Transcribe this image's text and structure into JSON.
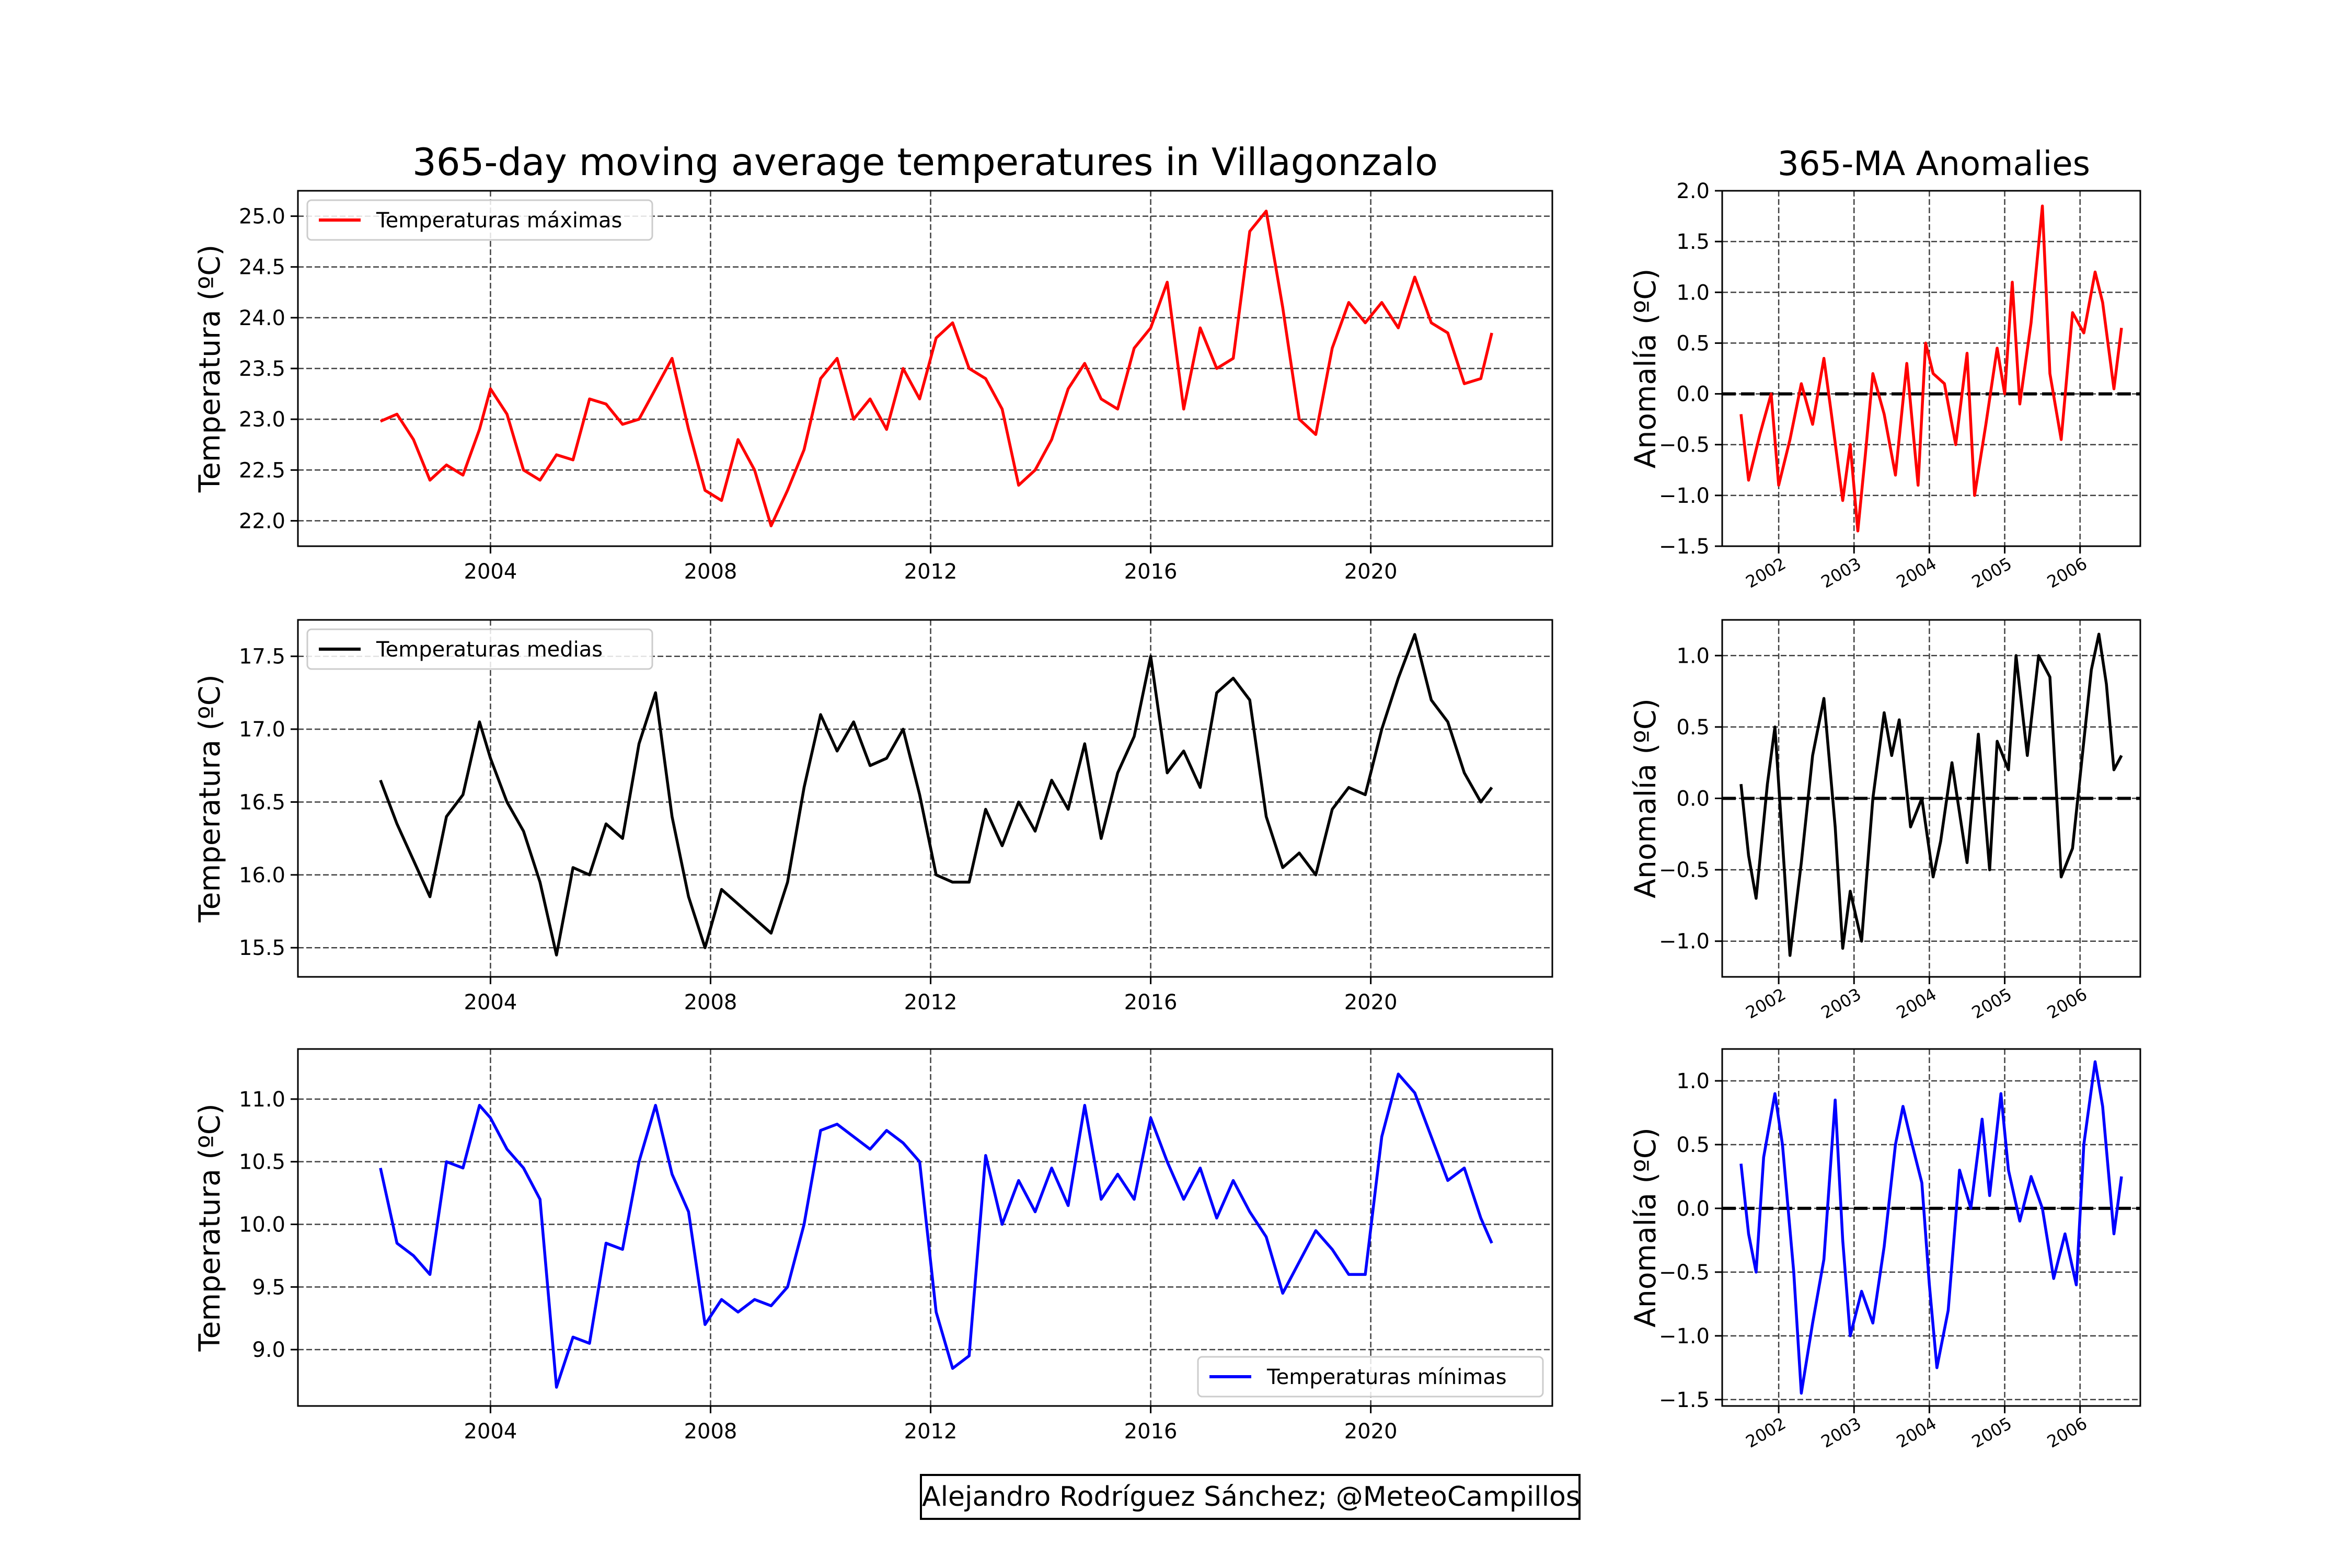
{
  "title_main": "365-day moving average temperatures in Villagonzalo",
  "title_anom": "365-MA Anomalies",
  "credit": "Alejandro Rodríguez Sánchez; @MeteoCampillos",
  "chart_data": [
    {
      "id": "max",
      "type": "line",
      "color": "#ff0000",
      "legend": "Temperaturas máximas",
      "legend_loc": "upper left",
      "ylabel": "Temperatura (ºC)",
      "xlim": [
        2000.5,
        2023.3
      ],
      "ylim": [
        21.75,
        25.25
      ],
      "xticks": [
        2004,
        2008,
        2012,
        2016,
        2020
      ],
      "xtick_labels": [
        "2004",
        "2008",
        "2012",
        "2016",
        "2020"
      ],
      "yticks": [
        22.0,
        22.5,
        23.0,
        23.5,
        24.0,
        24.5,
        25.0
      ],
      "ytick_labels": [
        "22.0",
        "22.5",
        "23.0",
        "23.5",
        "24.0",
        "24.5",
        "25.0"
      ],
      "grid": true,
      "x": [
        2002.0,
        2002.3,
        2002.6,
        2002.9,
        2003.2,
        2003.5,
        2003.8,
        2004.0,
        2004.3,
        2004.6,
        2004.9,
        2005.2,
        2005.5,
        2005.8,
        2006.1,
        2006.4,
        2006.7,
        2007.0,
        2007.3,
        2007.6,
        2007.9,
        2008.2,
        2008.5,
        2008.8,
        2009.1,
        2009.4,
        2009.7,
        2010.0,
        2010.3,
        2010.6,
        2010.9,
        2011.2,
        2011.5,
        2011.8,
        2012.1,
        2012.4,
        2012.7,
        2013.0,
        2013.3,
        2013.6,
        2013.9,
        2014.2,
        2014.5,
        2014.8,
        2015.1,
        2015.4,
        2015.7,
        2016.0,
        2016.3,
        2016.6,
        2016.9,
        2017.2,
        2017.5,
        2017.8,
        2018.1,
        2018.4,
        2018.7,
        2019.0,
        2019.3,
        2019.6,
        2019.9,
        2020.2,
        2020.5,
        2020.8,
        2021.1,
        2021.4,
        2021.7,
        2022.0,
        2022.2
      ],
      "y": [
        22.98,
        23.05,
        22.8,
        22.4,
        22.55,
        22.45,
        22.9,
        23.3,
        23.05,
        22.5,
        22.4,
        22.65,
        22.6,
        23.2,
        23.15,
        22.95,
        23.0,
        23.3,
        23.6,
        22.9,
        22.3,
        22.2,
        22.8,
        22.5,
        21.95,
        22.3,
        22.7,
        23.4,
        23.6,
        23.0,
        23.2,
        22.9,
        23.5,
        23.2,
        23.8,
        23.95,
        23.5,
        23.4,
        23.1,
        22.35,
        22.5,
        22.8,
        23.3,
        23.55,
        23.2,
        23.1,
        23.7,
        23.9,
        24.35,
        23.1,
        23.9,
        23.5,
        23.6,
        24.85,
        25.05,
        24.1,
        23.0,
        22.85,
        23.7,
        24.15,
        23.95,
        24.15,
        23.9,
        24.4,
        23.95,
        23.85,
        23.35,
        23.4,
        23.85
      ]
    },
    {
      "id": "mean",
      "type": "line",
      "color": "#000000",
      "legend": "Temperaturas medias",
      "legend_loc": "upper left",
      "ylabel": "Temperatura (ºC)",
      "xlim": [
        2000.5,
        2023.3
      ],
      "ylim": [
        15.3,
        17.75
      ],
      "xticks": [
        2004,
        2008,
        2012,
        2016,
        2020
      ],
      "xtick_labels": [
        "2004",
        "2008",
        "2012",
        "2016",
        "2020"
      ],
      "yticks": [
        15.5,
        16.0,
        16.5,
        17.0,
        17.5
      ],
      "ytick_labels": [
        "15.5",
        "16.0",
        "16.5",
        "17.0",
        "17.5"
      ],
      "grid": true,
      "x": [
        2002.0,
        2002.3,
        2002.6,
        2002.9,
        2003.2,
        2003.5,
        2003.8,
        2004.0,
        2004.3,
        2004.6,
        2004.9,
        2005.2,
        2005.5,
        2005.8,
        2006.1,
        2006.4,
        2006.7,
        2007.0,
        2007.3,
        2007.6,
        2007.9,
        2008.2,
        2008.5,
        2008.8,
        2009.1,
        2009.4,
        2009.7,
        2010.0,
        2010.3,
        2010.6,
        2010.9,
        2011.2,
        2011.5,
        2011.8,
        2012.1,
        2012.4,
        2012.7,
        2013.0,
        2013.3,
        2013.6,
        2013.9,
        2014.2,
        2014.5,
        2014.8,
        2015.1,
        2015.4,
        2015.7,
        2016.0,
        2016.3,
        2016.6,
        2016.9,
        2017.2,
        2017.5,
        2017.8,
        2018.1,
        2018.4,
        2018.7,
        2019.0,
        2019.3,
        2019.6,
        2019.9,
        2020.2,
        2020.5,
        2020.8,
        2021.1,
        2021.4,
        2021.7,
        2022.0,
        2022.2
      ],
      "y": [
        16.65,
        16.35,
        16.1,
        15.85,
        16.4,
        16.55,
        17.05,
        16.8,
        16.5,
        16.3,
        15.95,
        15.45,
        16.05,
        16.0,
        16.35,
        16.25,
        16.9,
        17.25,
        16.4,
        15.85,
        15.5,
        15.9,
        15.8,
        15.7,
        15.6,
        15.95,
        16.6,
        17.1,
        16.85,
        17.05,
        16.75,
        16.8,
        17.0,
        16.55,
        16.0,
        15.95,
        15.95,
        16.45,
        16.2,
        16.5,
        16.3,
        16.65,
        16.45,
        16.9,
        16.25,
        16.7,
        16.95,
        17.5,
        16.7,
        16.85,
        16.6,
        17.25,
        17.35,
        17.2,
        16.4,
        16.05,
        16.15,
        16.0,
        16.45,
        16.6,
        16.55,
        17.0,
        17.35,
        17.65,
        17.2,
        17.05,
        16.7,
        16.5,
        16.6
      ]
    },
    {
      "id": "min",
      "type": "line",
      "color": "#0000ff",
      "legend": "Temperaturas mínimas",
      "legend_loc": "lower right",
      "ylabel": "Temperatura (ºC)",
      "xlim": [
        2000.5,
        2023.3
      ],
      "ylim": [
        8.55,
        11.4
      ],
      "xticks": [
        2004,
        2008,
        2012,
        2016,
        2020
      ],
      "xtick_labels": [
        "2004",
        "2008",
        "2012",
        "2016",
        "2020"
      ],
      "yticks": [
        9.0,
        9.5,
        10.0,
        10.5,
        11.0
      ],
      "ytick_labels": [
        "9.0",
        "9.5",
        "10.0",
        "10.5",
        "11.0"
      ],
      "grid": true,
      "x": [
        2002.0,
        2002.3,
        2002.6,
        2002.9,
        2003.2,
        2003.5,
        2003.8,
        2004.0,
        2004.3,
        2004.6,
        2004.9,
        2005.2,
        2005.5,
        2005.8,
        2006.1,
        2006.4,
        2006.7,
        2007.0,
        2007.3,
        2007.6,
        2007.9,
        2008.2,
        2008.5,
        2008.8,
        2009.1,
        2009.4,
        2009.7,
        2010.0,
        2010.3,
        2010.6,
        2010.9,
        2011.2,
        2011.5,
        2011.8,
        2012.1,
        2012.4,
        2012.7,
        2013.0,
        2013.3,
        2013.6,
        2013.9,
        2014.2,
        2014.5,
        2014.8,
        2015.1,
        2015.4,
        2015.7,
        2016.0,
        2016.3,
        2016.6,
        2016.9,
        2017.2,
        2017.5,
        2017.8,
        2018.1,
        2018.4,
        2018.7,
        2019.0,
        2019.3,
        2019.6,
        2019.9,
        2020.2,
        2020.5,
        2020.8,
        2021.1,
        2021.4,
        2021.7,
        2022.0,
        2022.2
      ],
      "y": [
        10.45,
        9.85,
        9.75,
        9.6,
        10.5,
        10.45,
        10.95,
        10.85,
        10.6,
        10.45,
        10.2,
        8.7,
        9.1,
        9.05,
        9.85,
        9.8,
        10.5,
        10.95,
        10.4,
        10.1,
        9.2,
        9.4,
        9.3,
        9.4,
        9.35,
        9.5,
        10.0,
        10.75,
        10.8,
        10.7,
        10.6,
        10.75,
        10.65,
        10.5,
        9.3,
        8.85,
        8.95,
        10.55,
        10.0,
        10.35,
        10.1,
        10.45,
        10.15,
        10.95,
        10.2,
        10.4,
        10.2,
        10.85,
        10.5,
        10.2,
        10.45,
        10.05,
        10.35,
        10.1,
        9.9,
        9.45,
        9.7,
        9.95,
        9.8,
        9.6,
        9.6,
        10.7,
        11.2,
        11.05,
        10.7,
        10.35,
        10.45,
        10.05,
        9.85
      ]
    },
    {
      "id": "anom_max",
      "type": "line",
      "color": "#ff0000",
      "ylabel": "Anomalía (ºC)",
      "xlim": [
        2001.25,
        2006.8
      ],
      "ylim": [
        -1.5,
        2.0
      ],
      "xticks": [
        2002,
        2003,
        2004,
        2005,
        2006
      ],
      "xtick_labels": [
        "2002",
        "2003",
        "2004",
        "2005",
        "2006"
      ],
      "yticks": [
        -1.5,
        -1.0,
        -0.5,
        0.0,
        0.5,
        1.0,
        1.5,
        2.0
      ],
      "ytick_labels": [
        "−1.5",
        "−1.0",
        "−0.5",
        "0.0",
        "0.5",
        "1.0",
        "1.5",
        "2.0"
      ],
      "grid": true,
      "zero_line": true,
      "x": [
        2001.5,
        2001.6,
        2001.75,
        2001.9,
        2002.0,
        2002.15,
        2002.3,
        2002.45,
        2002.6,
        2002.7,
        2002.85,
        2002.95,
        2003.05,
        2003.15,
        2003.25,
        2003.4,
        2003.55,
        2003.7,
        2003.85,
        2003.95,
        2004.05,
        2004.2,
        2004.35,
        2004.5,
        2004.6,
        2004.75,
        2004.9,
        2005.0,
        2005.1,
        2005.2,
        2005.35,
        2005.5,
        2005.6,
        2005.75,
        2005.9,
        2006.05,
        2006.2,
        2006.3,
        2006.45,
        2006.55
      ],
      "y": [
        -0.2,
        -0.85,
        -0.4,
        0.0,
        -0.9,
        -0.45,
        0.1,
        -0.3,
        0.35,
        -0.2,
        -1.05,
        -0.5,
        -1.35,
        -0.6,
        0.2,
        -0.2,
        -0.8,
        0.3,
        -0.9,
        0.5,
        0.2,
        0.1,
        -0.5,
        0.4,
        -1.0,
        -0.3,
        0.45,
        0.0,
        1.1,
        -0.1,
        0.7,
        1.85,
        0.2,
        -0.45,
        0.8,
        0.6,
        1.2,
        0.9,
        0.05,
        0.65
      ]
    },
    {
      "id": "anom_mean",
      "type": "line",
      "color": "#000000",
      "ylabel": "Anomalía (ºC)",
      "xlim": [
        2001.25,
        2006.8
      ],
      "ylim": [
        -1.25,
        1.25
      ],
      "xticks": [
        2002,
        2003,
        2004,
        2005,
        2006
      ],
      "xtick_labels": [
        "2002",
        "2003",
        "2004",
        "2005",
        "2006"
      ],
      "yticks": [
        -1.0,
        -0.5,
        0.0,
        0.5,
        1.0
      ],
      "ytick_labels": [
        "−1.0",
        "−0.5",
        "0.0",
        "0.5",
        "1.0"
      ],
      "grid": true,
      "zero_line": true,
      "x": [
        2001.5,
        2001.6,
        2001.7,
        2001.85,
        2001.95,
        2002.05,
        2002.15,
        2002.3,
        2002.45,
        2002.6,
        2002.75,
        2002.85,
        2002.95,
        2003.1,
        2003.25,
        2003.4,
        2003.5,
        2003.6,
        2003.75,
        2003.9,
        2004.05,
        2004.15,
        2004.3,
        2004.5,
        2004.65,
        2004.8,
        2004.9,
        2005.05,
        2005.15,
        2005.3,
        2005.45,
        2005.6,
        2005.75,
        2005.9,
        2006.0,
        2006.15,
        2006.25,
        2006.35,
        2006.45,
        2006.55
      ],
      "y": [
        0.1,
        -0.4,
        -0.7,
        0.1,
        0.5,
        -0.3,
        -1.1,
        -0.45,
        0.3,
        0.7,
        -0.2,
        -1.05,
        -0.65,
        -1.0,
        0.0,
        0.6,
        0.3,
        0.55,
        -0.2,
        0.0,
        -0.55,
        -0.3,
        0.25,
        -0.45,
        0.45,
        -0.5,
        0.4,
        0.2,
        1.0,
        0.3,
        1.0,
        0.85,
        -0.55,
        -0.35,
        0.15,
        0.9,
        1.15,
        0.8,
        0.2,
        0.3
      ]
    },
    {
      "id": "anom_min",
      "type": "line",
      "color": "#0000ff",
      "ylabel": "Anomalía (ºC)",
      "xlim": [
        2001.25,
        2006.8
      ],
      "ylim": [
        -1.55,
        1.25
      ],
      "xticks": [
        2002,
        2003,
        2004,
        2005,
        2006
      ],
      "xtick_labels": [
        "2002",
        "2003",
        "2004",
        "2005",
        "2006"
      ],
      "yticks": [
        -1.5,
        -1.0,
        -0.5,
        0.0,
        0.5,
        1.0
      ],
      "ytick_labels": [
        "−1.5",
        "−1.0",
        "−0.5",
        "0.0",
        "0.5",
        "1.0"
      ],
      "grid": true,
      "zero_line": true,
      "x": [
        2001.5,
        2001.6,
        2001.7,
        2001.8,
        2001.95,
        2002.05,
        2002.2,
        2002.3,
        2002.45,
        2002.6,
        2002.75,
        2002.85,
        2002.95,
        2003.1,
        2003.25,
        2003.4,
        2003.55,
        2003.65,
        2003.75,
        2003.9,
        2004.0,
        2004.1,
        2004.25,
        2004.4,
        2004.55,
        2004.7,
        2004.8,
        2004.95,
        2005.05,
        2005.2,
        2005.35,
        2005.5,
        2005.65,
        2005.8,
        2005.95,
        2006.05,
        2006.2,
        2006.3,
        2006.45,
        2006.55
      ],
      "y": [
        0.35,
        -0.2,
        -0.5,
        0.4,
        0.9,
        0.5,
        -0.5,
        -1.45,
        -0.9,
        -0.4,
        0.85,
        -0.25,
        -1.0,
        -0.65,
        -0.9,
        -0.3,
        0.5,
        0.8,
        0.55,
        0.2,
        -0.6,
        -1.25,
        -0.8,
        0.3,
        0.0,
        0.7,
        0.1,
        0.9,
        0.3,
        -0.1,
        0.25,
        0.0,
        -0.55,
        -0.2,
        -0.6,
        0.5,
        1.15,
        0.8,
        -0.2,
        0.25
      ]
    }
  ]
}
